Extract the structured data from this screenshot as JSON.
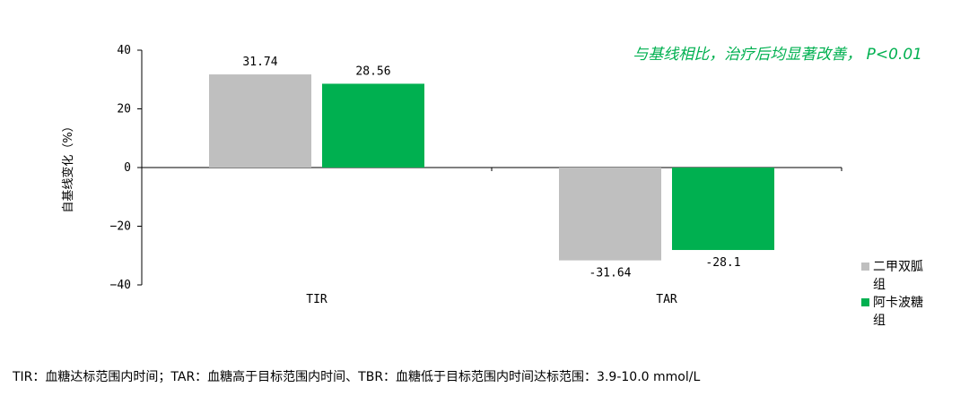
{
  "chart_data": {
    "type": "bar",
    "categories": [
      "TIR",
      "TAR"
    ],
    "series": [
      {
        "name": "二甲双胍组",
        "color": "#bfbfbf",
        "values": [
          31.74,
          -31.64
        ],
        "labels": [
          "31.74",
          "-31.64"
        ]
      },
      {
        "name": "阿卡波糖组",
        "color": "#00b050",
        "values": [
          28.56,
          -28.1
        ],
        "labels": [
          "28.56",
          "-28.1"
        ]
      }
    ],
    "ylabel": "自基线变化（%）",
    "ylim": [
      -40,
      40
    ],
    "yticks": [
      40,
      20,
      0,
      -20,
      -40
    ],
    "ytick_labels": [
      "40",
      "20",
      "0",
      "−20",
      "−40"
    ],
    "annotation": "与基线相比，治疗后均显著改善， P<0.01",
    "legend_position": "right",
    "grid": false
  },
  "footnote": "TIR：血糖达标范围内时间；TAR：血糖高于目标范围内时间、TBR：血糖低于目标范围内时间达标范围：3.9-10.0 mmol/L"
}
